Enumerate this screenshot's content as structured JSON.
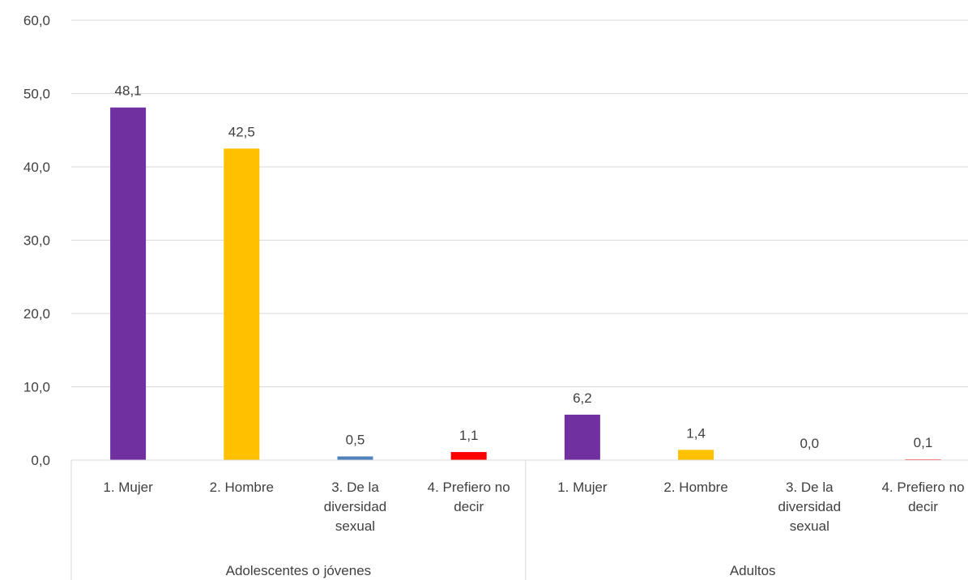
{
  "chart_data": {
    "type": "bar",
    "ylim": [
      0,
      60
    ],
    "yticks": [
      "0,0",
      "10,0",
      "20,0",
      "30,0",
      "40,0",
      "50,0",
      "60,0"
    ],
    "grid": true,
    "legend": "none",
    "groups": [
      {
        "label": "Adolescentes o jóvenes",
        "bars": [
          {
            "category": [
              "1. Mujer"
            ],
            "value": 48.1,
            "label": "48,1",
            "color": "#7030A0"
          },
          {
            "category": [
              "2. Hombre"
            ],
            "value": 42.5,
            "label": "42,5",
            "color": "#FFC000"
          },
          {
            "category": [
              "3. De la",
              "diversidad",
              "sexual"
            ],
            "value": 0.5,
            "label": "0,5",
            "color": "#4F81BD"
          },
          {
            "category": [
              "4. Prefiero no",
              "decir"
            ],
            "value": 1.1,
            "label": "1,1",
            "color": "#FF0000"
          }
        ]
      },
      {
        "label": "Adultos",
        "bars": [
          {
            "category": [
              "1. Mujer"
            ],
            "value": 6.2,
            "label": "6,2",
            "color": "#7030A0"
          },
          {
            "category": [
              "2. Hombre"
            ],
            "value": 1.4,
            "label": "1,4",
            "color": "#FFC000"
          },
          {
            "category": [
              "3. De la",
              "diversidad",
              "sexual"
            ],
            "value": 0.0,
            "label": "0,0",
            "color": "#4F81BD"
          },
          {
            "category": [
              "4. Prefiero no",
              "decir"
            ],
            "value": 0.1,
            "label": "0,1",
            "color": "#FF0000"
          }
        ]
      }
    ]
  }
}
